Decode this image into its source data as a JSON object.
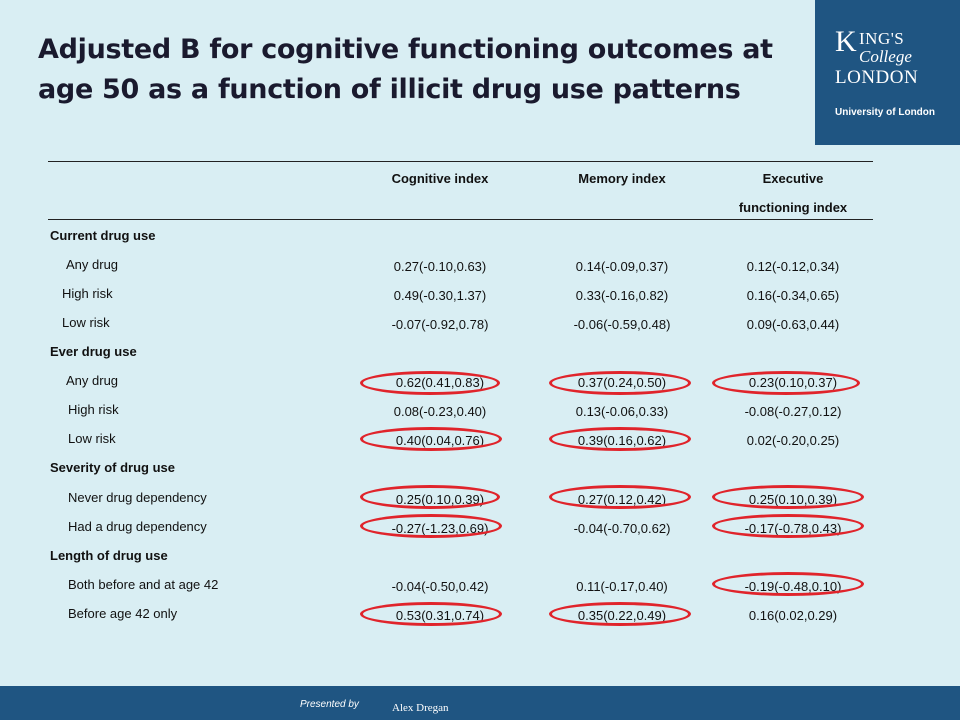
{
  "title": "Adjusted B for cognitive functioning outcomes at age 50 as a function of illicit drug use patterns",
  "logo": {
    "k": "K",
    "ings": "ING'S",
    "college": "College",
    "london": "LONDON",
    "university": "University of London"
  },
  "columns": [
    "Cognitive index",
    "Memory index",
    "Executive",
    "functioning index"
  ],
  "rows": [
    {
      "label": "Current drug use",
      "section": true
    },
    {
      "label": "Any drug",
      "values": [
        "0.27(-0.10,0.63)",
        "0.14(-0.09,0.37)",
        "0.12(-0.12,0.34)"
      ]
    },
    {
      "label": "High risk",
      "values": [
        "0.49(-0.30,1.37)",
        "0.33(-0.16,0.82)",
        "0.16(-0.34,0.65)"
      ]
    },
    {
      "label": "Low risk",
      "values": [
        "-0.07(-0.92,0.78)",
        "-0.06(-0.59,0.48)",
        "0.09(-0.63,0.44)"
      ]
    },
    {
      "label": "Ever drug use",
      "section": true
    },
    {
      "label": "Any drug",
      "values": [
        "0.62(0.41,0.83)",
        "0.37(0.24,0.50)",
        "0.23(0.10,0.37)"
      ]
    },
    {
      "label": "High risk",
      "values": [
        "0.08(-0.23,0.40)",
        "0.13(-0.06,0.33)",
        "-0.08(-0.27,0.12)"
      ]
    },
    {
      "label": "Low risk",
      "values": [
        "0.40(0.04,0.76)",
        "0.39(0.16,0.62)",
        "0.02(-0.20,0.25)"
      ]
    },
    {
      "label": "Severity of drug use",
      "section": true
    },
    {
      "label": "Never drug dependency",
      "values": [
        "0.25(0.10,0.39)",
        "0.27(0.12,0.42)",
        "0.25(0.10,0.39)"
      ]
    },
    {
      "label": "Had a drug dependency",
      "values": [
        "-0.27(-1.23,0.69)",
        "-0.04(-0.70,0.62)",
        "-0.17(-0.78,0.43)"
      ]
    },
    {
      "label": "Length of drug use",
      "section": true
    },
    {
      "label": "Both before and at age 42",
      "values": [
        "-0.04(-0.50,0.42)",
        "0.11(-0.17,0.40)",
        "-0.19(-0.48,0.10)"
      ]
    },
    {
      "label": "Before age 42 only",
      "values": [
        "0.53(0.31,0.74)",
        "0.35(0.22,0.49)",
        "0.16(0.02,0.29)"
      ]
    }
  ],
  "footer": {
    "presented_by": "Presented by",
    "presenter": "Alex Dregan"
  },
  "colors": {
    "background": "#d9eef3",
    "brand": "#1f5582",
    "highlight": "#e0242b"
  }
}
